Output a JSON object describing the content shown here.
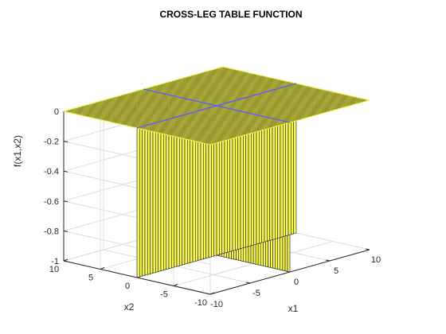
{
  "chart_data": {
    "type": "surface",
    "title": "CROSS-LEG TABLE FUNCTION",
    "xlabel": "x1",
    "ylabel": "x2",
    "zlabel": "f(x1,x2)",
    "xlim": [
      -10,
      10
    ],
    "ylim": [
      -10,
      10
    ],
    "zlim": [
      -1,
      0
    ],
    "xticks": [
      "-10",
      "-5",
      "0",
      "5",
      "10"
    ],
    "yticks": [
      "-10",
      "-5",
      "0",
      "5",
      "10"
    ],
    "zticks": [
      "-1",
      "-0.8",
      "-0.6",
      "-0.4",
      "-0.2",
      "0"
    ],
    "grid": true,
    "description_values": {
      "plateau_value": 0,
      "cross_value": -1,
      "cross_lines": [
        "x1 = 0",
        "x2 = 0"
      ]
    },
    "colors": {
      "surface_face": "#f5f54a",
      "surface_edge": "#1b1b3a",
      "cross_line": "#5a5aff",
      "axis": "#262626",
      "grid": "#dcdcdc"
    }
  }
}
